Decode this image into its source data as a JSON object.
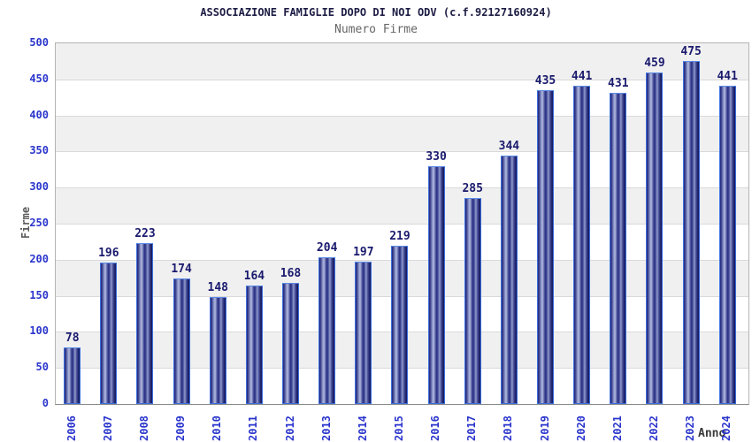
{
  "header": {
    "title": "ASSOCIAZIONE FAMIGLIE DOPO DI NOI ODV (c.f.92127160924)",
    "subtitle": "Numero Firme"
  },
  "chart_data": {
    "type": "bar",
    "title": "ASSOCIAZIONE FAMIGLIE DOPO DI NOI ODV (c.f.92127160924)",
    "subtitle": "Numero Firme",
    "xlabel": "Anno",
    "ylabel": "Firme",
    "categories": [
      "2006",
      "2007",
      "2008",
      "2009",
      "2010",
      "2011",
      "2012",
      "2013",
      "2014",
      "2015",
      "2016",
      "2017",
      "2018",
      "2019",
      "2020",
      "2021",
      "2022",
      "2023",
      "2024"
    ],
    "values": [
      78,
      196,
      223,
      174,
      148,
      164,
      168,
      204,
      197,
      219,
      330,
      285,
      344,
      435,
      441,
      431,
      459,
      475,
      441
    ],
    "ylim": [
      0,
      500
    ],
    "ytick_step": 50,
    "yticks": [
      0,
      50,
      100,
      150,
      200,
      250,
      300,
      350,
      400,
      450,
      500
    ],
    "grid": true,
    "legend_position": "none",
    "band_colors": [
      "#f0f0f0",
      "#ffffff"
    ],
    "colors": {
      "bar_border": "#3b6fdd",
      "bar_dark": "#1d2169",
      "bar_highlight": "#b0b8de",
      "tick_label": "#2a35cc",
      "value_label": "#1a1a6e",
      "title": "#1c1c44",
      "subtitle": "#666666",
      "gridline": "#d9d9d9"
    }
  }
}
